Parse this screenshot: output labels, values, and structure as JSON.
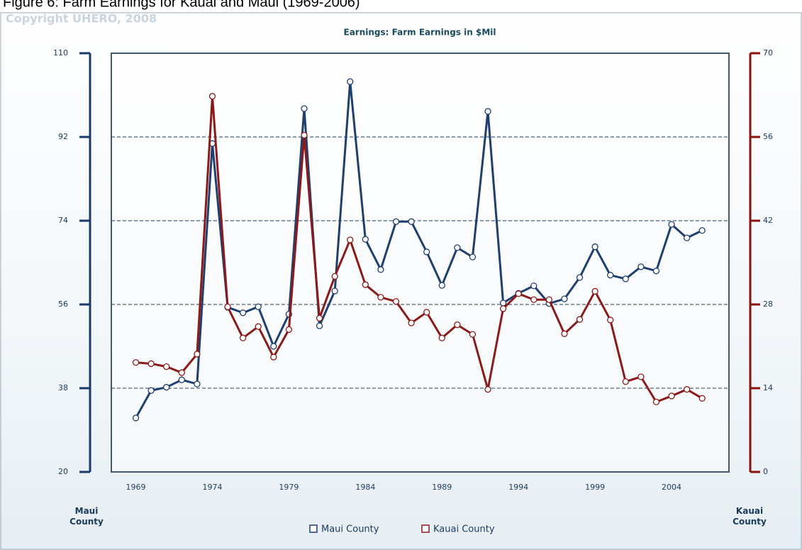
{
  "figure_title": "Figure 6: Farm Earnings for Kauai and Maui (1969-2006)",
  "copyright": "Copyright UHERO, 2008",
  "chart_data": {
    "type": "line",
    "title": "Earnings: Farm Earnings in $Mil",
    "ylabel": "Maui County",
    "y2label": "Kauai County",
    "x": [
      1969,
      1970,
      1971,
      1972,
      1973,
      1974,
      1975,
      1976,
      1977,
      1978,
      1979,
      1980,
      1981,
      1982,
      1983,
      1984,
      1985,
      1986,
      1987,
      1988,
      1989,
      1990,
      1991,
      1992,
      1993,
      1994,
      1995,
      1996,
      1997,
      1998,
      1999,
      2000,
      2001,
      2002,
      2003,
      2004,
      2005,
      2006
    ],
    "xlim": [
      1967.4,
      2007.75
    ],
    "xticks": [
      1969,
      1974,
      1979,
      1984,
      1989,
      1994,
      1999,
      2004
    ],
    "ylim": [
      20,
      110
    ],
    "yticks": [
      20,
      38,
      56,
      74,
      92,
      110
    ],
    "y2lim": [
      0,
      70
    ],
    "y2ticks": [
      0,
      14,
      28,
      42,
      56,
      70
    ],
    "grid": true,
    "legend": "bottom",
    "series": [
      {
        "name": "Maui County",
        "color": "#1f3f6e",
        "axis": "y",
        "values": [
          31.6,
          37.5,
          38.2,
          39.8,
          38.9,
          90.6,
          55.4,
          54.2,
          55.5,
          47.0,
          53.9,
          98.1,
          51.4,
          58.9,
          103.9,
          70.0,
          63.5,
          73.8,
          73.8,
          67.3,
          60.1,
          68.2,
          66.2,
          97.5,
          56.3,
          58.4,
          60.0,
          56.2,
          57.2,
          61.8,
          68.4,
          62.3,
          61.5,
          64.1,
          63.2,
          73.2,
          70.3,
          71.9
        ]
      },
      {
        "name": "Kauai County",
        "color": "#8b1a1a",
        "axis": "y2",
        "values": [
          18.3,
          18.1,
          17.6,
          16.6,
          19.7,
          62.8,
          27.6,
          22.4,
          24.3,
          19.2,
          23.8,
          56.3,
          25.7,
          32.7,
          38.8,
          31.3,
          29.2,
          28.5,
          24.9,
          26.7,
          22.4,
          24.6,
          23.0,
          13.8,
          27.3,
          29.8,
          28.8,
          28.8,
          23.1,
          25.5,
          30.2,
          25.4,
          15.1,
          15.9,
          11.7,
          12.7,
          13.8,
          12.3
        ]
      }
    ]
  }
}
